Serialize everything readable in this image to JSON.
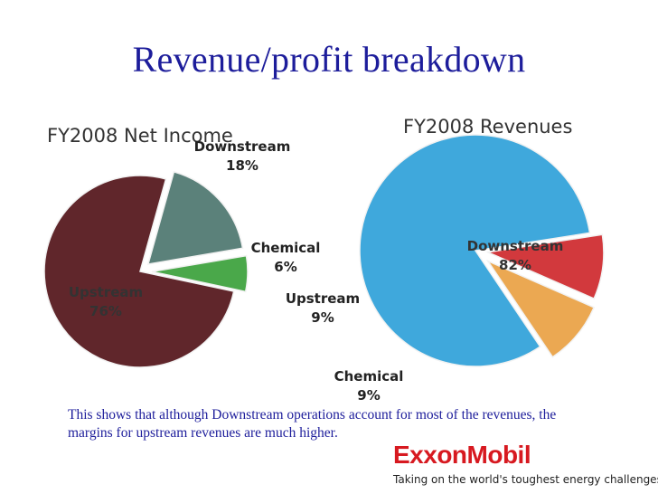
{
  "title": "Revenue/profit breakdown",
  "caption": "This shows that although Downstream operations account for most of the revenues, the margins for upstream revenues are much higher.",
  "logo": {
    "wordmark": "ExxonMobil",
    "tagline": "Taking on the world's toughest energy challenges."
  },
  "colors": {
    "title": "#1d1d9b",
    "upstream_income": "#60262b",
    "downstream_income": "#5b817a",
    "chemical_income": "#4aa84a",
    "downstream_revenue": "#3fa8dc",
    "upstream_revenue": "#d2393d",
    "chemical_revenue": "#eba852",
    "logo": "#d71920"
  },
  "chart_data": [
    {
      "type": "pie",
      "title": "FY2008 Net Income",
      "slices": [
        {
          "label": "Upstream",
          "value": 76,
          "display": "76%",
          "color": "#60262b"
        },
        {
          "label": "Downstream",
          "value": 18,
          "display": "18%",
          "color": "#5b817a"
        },
        {
          "label": "Chemical",
          "value": 6,
          "display": "6%",
          "color": "#4aa84a"
        }
      ]
    },
    {
      "type": "pie",
      "title": "FY2008 Revenues",
      "slices": [
        {
          "label": "Downstream",
          "value": 82,
          "display": "82%",
          "color": "#3fa8dc"
        },
        {
          "label": "Upstream",
          "value": 9,
          "display": "9%",
          "color": "#d2393d"
        },
        {
          "label": "Chemical",
          "value": 9,
          "display": "9%",
          "color": "#eba852"
        }
      ]
    }
  ]
}
